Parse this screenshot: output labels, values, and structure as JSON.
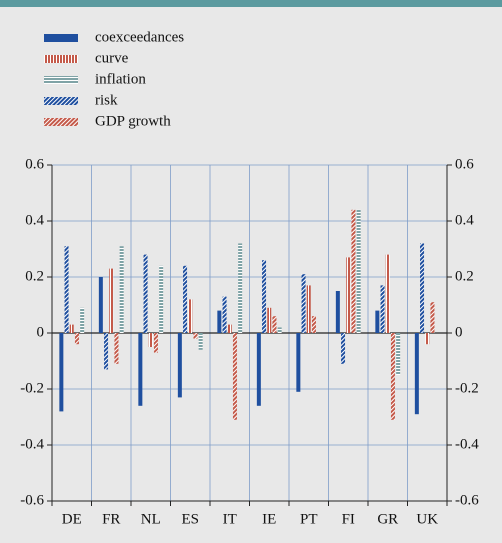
{
  "chart_data": {
    "type": "bar",
    "categories": [
      "DE",
      "FR",
      "NL",
      "ES",
      "IT",
      "IE",
      "PT",
      "FI",
      "GR",
      "UK"
    ],
    "series": [
      {
        "name": "coexceedances",
        "color": "#1f4f9f",
        "hatch": "solid",
        "values": [
          -0.28,
          0.2,
          -0.26,
          -0.23,
          0.08,
          -0.26,
          -0.21,
          0.15,
          0.08,
          -0.29
        ]
      },
      {
        "name": "curve",
        "color": "#c45a4a",
        "hatch": "vertical",
        "values": [
          0.03,
          0.23,
          -0.05,
          0.12,
          0.03,
          0.09,
          0.17,
          0.27,
          0.28,
          -0.04
        ]
      },
      {
        "name": "inflation",
        "color": "#7fa3a6",
        "hatch": "horizontal",
        "values": [
          0.09,
          0.31,
          0.24,
          -0.06,
          0.32,
          0.02,
          0,
          0.44,
          -0.15,
          0
        ]
      },
      {
        "name": "risk",
        "color": "#1f4f9f",
        "hatch": "diagonal",
        "values": [
          0.31,
          -0.13,
          0.28,
          0.24,
          0.13,
          0.26,
          0.21,
          -0.11,
          0.17,
          0.32
        ]
      },
      {
        "name": "GDP growth",
        "color": "#c45a4a",
        "hatch": "diagonal",
        "values": [
          -0.04,
          -0.11,
          -0.07,
          -0.02,
          -0.31,
          0.06,
          0.06,
          0.44,
          -0.31,
          0.11
        ]
      }
    ],
    "ylim": [
      -0.6,
      0.6
    ],
    "yticks": [
      -0.6,
      -0.4,
      -0.2,
      0,
      0.2,
      0.4,
      0.6
    ],
    "grid": true
  }
}
